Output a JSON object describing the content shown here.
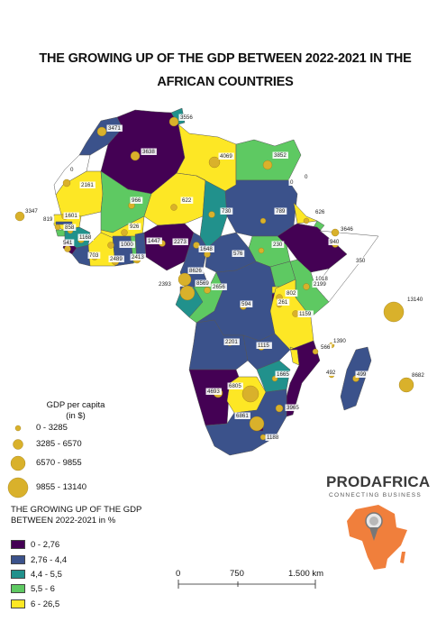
{
  "title": "THE GROWING UP OF THE GDP BETWEEN 2022-2021 IN THE AFRICAN COUNTRIES",
  "legend_gdp": {
    "title": "GDP per capita\n(in $)",
    "items": [
      "0 - 3285",
      "3285 - 6570",
      "6570 - 9855",
      "9855 - 13140"
    ]
  },
  "legend_growth": {
    "title": "THE GROWING UP OF THE GDP BETWEEN 2022-2021 in %",
    "items": [
      {
        "label": "0 - 2,76",
        "color": "#440154"
      },
      {
        "label": "2,76 - 4,4",
        "color": "#3b528b"
      },
      {
        "label": "4,4 - 5,5",
        "color": "#21918c"
      },
      {
        "label": "5,5 - 6",
        "color": "#5ec962"
      },
      {
        "label": "6 - 26,5",
        "color": "#fde725"
      }
    ]
  },
  "colors": {
    "c1": "#440154",
    "c2": "#3b528b",
    "c3": "#21918c",
    "c4": "#5ec962",
    "c5": "#fde725",
    "bubble": "#d9b12b",
    "logo_orange": "#f07f3c"
  },
  "scale": {
    "labels": [
      "0",
      "750",
      "1.500 km"
    ]
  },
  "logo": {
    "name": "PRODAFRICA",
    "tagline": "CONNECTING BUSINESS"
  },
  "gdp_labels": [
    "3556",
    "3471",
    "3638",
    "4069",
    "3852",
    "0",
    "2161",
    "0",
    "3347",
    "966",
    "622",
    "0",
    "1601",
    "819",
    "858",
    "1168",
    "926",
    "730",
    "789",
    "626",
    "3646",
    "541",
    "1000",
    "1447",
    "2273",
    "1648",
    "576",
    "230",
    "940",
    "350",
    "703",
    "2489",
    "2413",
    "8626",
    "1018",
    "2199",
    "2393",
    "8569",
    "2656",
    "802",
    "13140",
    "594",
    "261",
    "1159",
    "2201",
    "1115",
    "1390",
    "566",
    "492",
    "499",
    "4693",
    "6805",
    "1665",
    "8682",
    "6861",
    "3965",
    "1188"
  ]
}
